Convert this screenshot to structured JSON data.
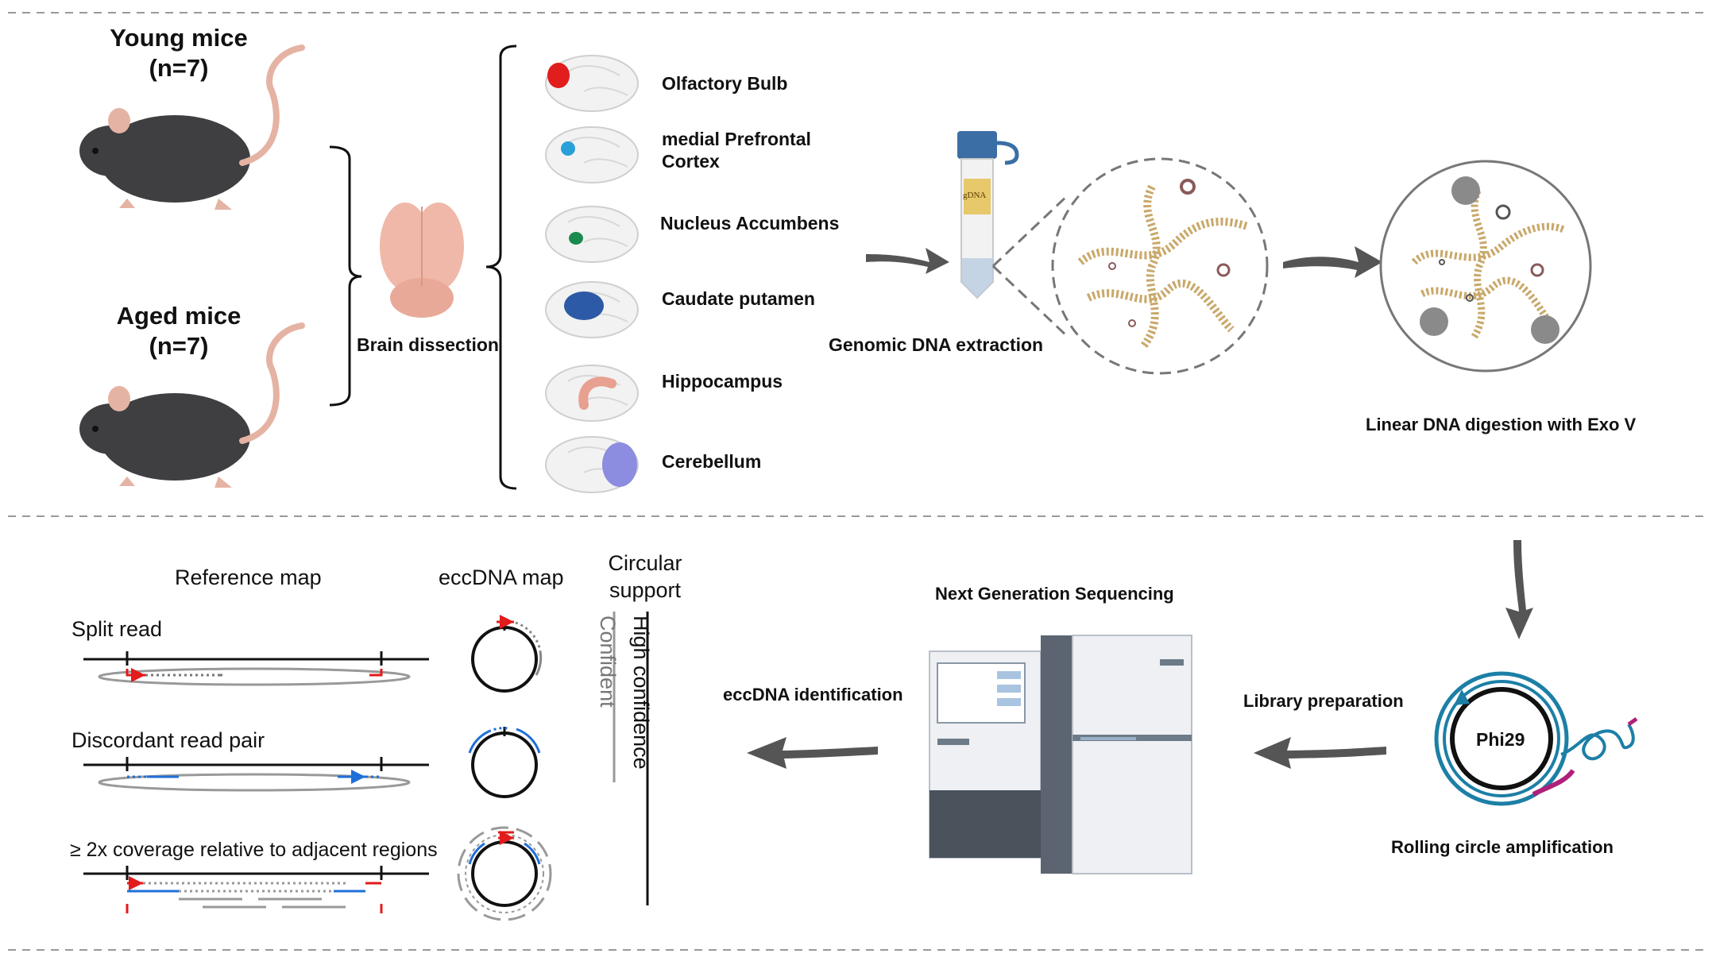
{
  "cohorts": {
    "young": {
      "title": "Young mice",
      "count": "(n=7)"
    },
    "aged": {
      "title": "Aged mice",
      "count": "(n=7)"
    }
  },
  "brain_dissection_label": "Brain dissection",
  "regions": [
    {
      "label": "Olfactory Bulb",
      "color": "#e11d1d"
    },
    {
      "label": "medial Prefrontal\nCortex",
      "color": "#2aa0d8"
    },
    {
      "label": "Nucleus Accumbens",
      "color": "#1a8a4e"
    },
    {
      "label": "Caudate putamen",
      "color": "#2d5aa6"
    },
    {
      "label": "Hippocampus",
      "color": "#e8a090"
    },
    {
      "label": "Cerebellum",
      "color": "#8c8ce0"
    }
  ],
  "steps": {
    "gdna_tube_label": "gDNA",
    "genomic_extraction": "Genomic DNA extraction",
    "exo_digestion": "Linear DNA digestion with Exo V",
    "rca": "Rolling circle amplification",
    "phi29": "Phi29",
    "library_prep": "Library preparation",
    "ngs": "Next Generation Sequencing",
    "ecc_identification": "eccDNA identification"
  },
  "identification": {
    "reference_map": "Reference map",
    "eccdna_map": "eccDNA map",
    "circular_support": "Circular\nsupport",
    "split_read": "Split read",
    "discordant_pair": "Discordant read pair",
    "coverage": "≥ 2x coverage relative to adjacent regions",
    "high_confidence": "High confidence",
    "confident": "Confident"
  },
  "colors": {
    "split_read": "#e21b1b",
    "discordant": "#1f6fd8",
    "arrow_gray": "#555555",
    "dna_tan": "#c9a86a",
    "rca_teal": "#1c7fa6",
    "rca_magenta": "#b0207a"
  }
}
